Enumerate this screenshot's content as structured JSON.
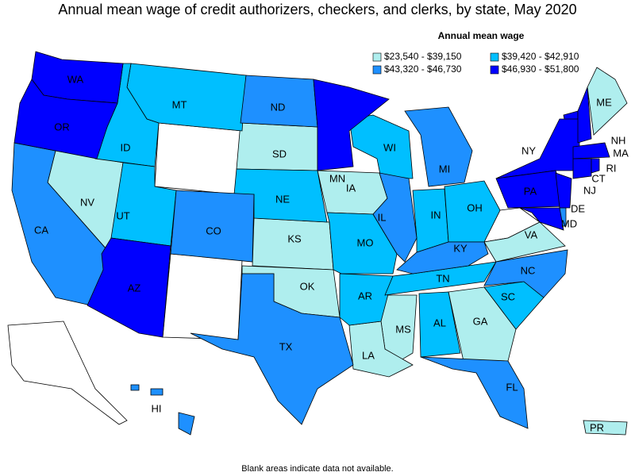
{
  "title": "Annual mean wage of credit authorizers, checkers, and clerks, by state, May 2020",
  "legend": {
    "title": "Annual mean wage",
    "items": [
      {
        "label": "$23,540 - $39,150",
        "color": "#afeeee",
        "states": [
          "NV",
          "SD",
          "IA",
          "KS",
          "OK",
          "MS",
          "LA",
          "GA",
          "VA",
          "ME",
          "PR"
        ]
      },
      {
        "label": "$39,420 - $42,910",
        "color": "#00bfff",
        "states": [
          "MT",
          "ID",
          "UT",
          "NE",
          "WI",
          "IN",
          "OH",
          "MO",
          "AR",
          "TN",
          "AL",
          "SC"
        ]
      },
      {
        "label": "$43,320 - $46,730",
        "color": "#1e90ff",
        "states": [
          "CA",
          "ND",
          "CO",
          "TX",
          "IL",
          "MI",
          "KY",
          "NC",
          "FL",
          "HI",
          "DE"
        ]
      },
      {
        "label": "$46,930 - $51,800",
        "color": "#0000ff",
        "states": [
          "WA",
          "OR",
          "AZ",
          "MN",
          "NY",
          "PA",
          "MD",
          "NJ",
          "CT",
          "RI",
          "MA",
          "NH"
        ]
      }
    ]
  },
  "footnote": "Blank areas indicate data not available."
}
